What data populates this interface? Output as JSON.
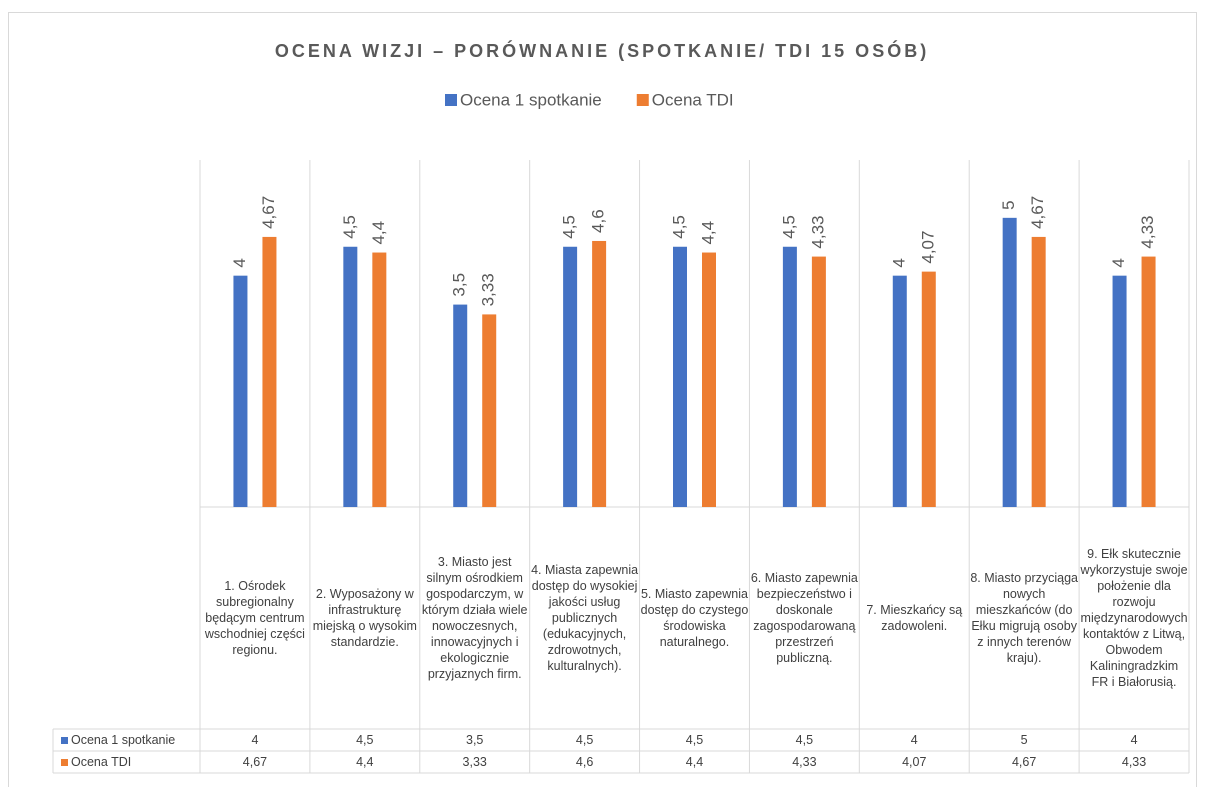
{
  "chart_data": {
    "type": "bar",
    "title": "OCENA WIZJI – PORÓWNANIE (SPOTKANIE/ TDI 15 OSÓB)",
    "categories": [
      "1. Ośrodek subregionalny będącym centrum wschodniej części regionu.",
      "2. Wyposażony w infrastrukturę miejską o wysokim standardzie.",
      "3. Miasto jest silnym ośrodkiem gospodarczym, w którym działa wiele nowoczesnych, innowacyjnych i ekologicznie przyjaznych firm.",
      "4. Miasta zapewnia dostęp do wysokiej jakości usług publicznych (edukacyjnych, zdrowotnych, kulturalnych).",
      "5. Miasto zapewnia dostęp do czystego środowiska naturalnego.",
      "6. Miasto zapewnia bezpieczeństwo i doskonale zagospodarowaną przestrzeń publiczną.",
      "7. Mieszkańcy są zadowoleni.",
      "8. Miasto przyciąga nowych mieszkańców (do Ełku migrują osoby z innych terenów kraju).",
      "9. Ełk skutecznie wykorzystuje swoje położenie dla rozwoju międzynarodowych kontaktów z Litwą, Obwodem Kaliningradzkim FR i Białorusią."
    ],
    "series": [
      {
        "name": "Ocena 1 spotkanie",
        "color": "#4472c4",
        "values": [
          4,
          4.5,
          3.5,
          4.5,
          4.5,
          4.5,
          4,
          5,
          4
        ],
        "value_labels": [
          "4",
          "4,5",
          "3,5",
          "4,5",
          "4,5",
          "4,5",
          "4",
          "5",
          "4"
        ]
      },
      {
        "name": "Ocena TDI",
        "color": "#ed7d31",
        "values": [
          4.67,
          4.4,
          3.33,
          4.6,
          4.4,
          4.33,
          4.07,
          4.67,
          4.33
        ],
        "value_labels": [
          "4,67",
          "4,4",
          "3,33",
          "4,6",
          "4,4",
          "4,33",
          "4,07",
          "4,67",
          "4,33"
        ]
      }
    ],
    "ylim": [
      0,
      6
    ],
    "legend": "top",
    "data_table": true
  }
}
